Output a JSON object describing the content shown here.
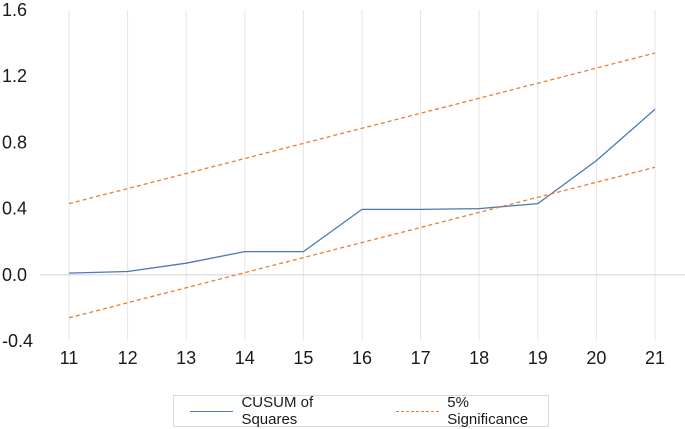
{
  "chart_data": {
    "type": "line",
    "title": "",
    "xlabel": "",
    "ylabel": "",
    "x": [
      11,
      12,
      13,
      14,
      15,
      16,
      17,
      18,
      19,
      20,
      21
    ],
    "xticks": [
      "11",
      "12",
      "13",
      "14",
      "15",
      "16",
      "17",
      "18",
      "19",
      "20",
      "21"
    ],
    "ylim": [
      -0.4,
      1.6
    ],
    "yticks": [
      "-0.4",
      "0.0",
      "0.4",
      "0.8",
      "1.2",
      "1.6"
    ],
    "grid": "vertical",
    "legend_position": "bottom",
    "series": [
      {
        "name": "CUSUM of Squares",
        "style": "solid",
        "color": "#4a78b5",
        "values": [
          0.01,
          0.02,
          0.07,
          0.14,
          0.14,
          0.395,
          0.395,
          0.4,
          0.43,
          0.69,
          1.0
        ]
      },
      {
        "name": "5% Significance",
        "style": "dashed",
        "color": "#ed7d31",
        "values": [
          0.43,
          0.521,
          0.612,
          0.703,
          0.794,
          0.885,
          0.976,
          1.067,
          1.158,
          1.249,
          1.34
        ]
      },
      {
        "name": "",
        "style": "dashed",
        "color": "#ed7d31",
        "values": [
          -0.26,
          -0.169,
          -0.078,
          0.013,
          0.104,
          0.195,
          0.286,
          0.377,
          0.468,
          0.559,
          0.65
        ]
      }
    ]
  }
}
